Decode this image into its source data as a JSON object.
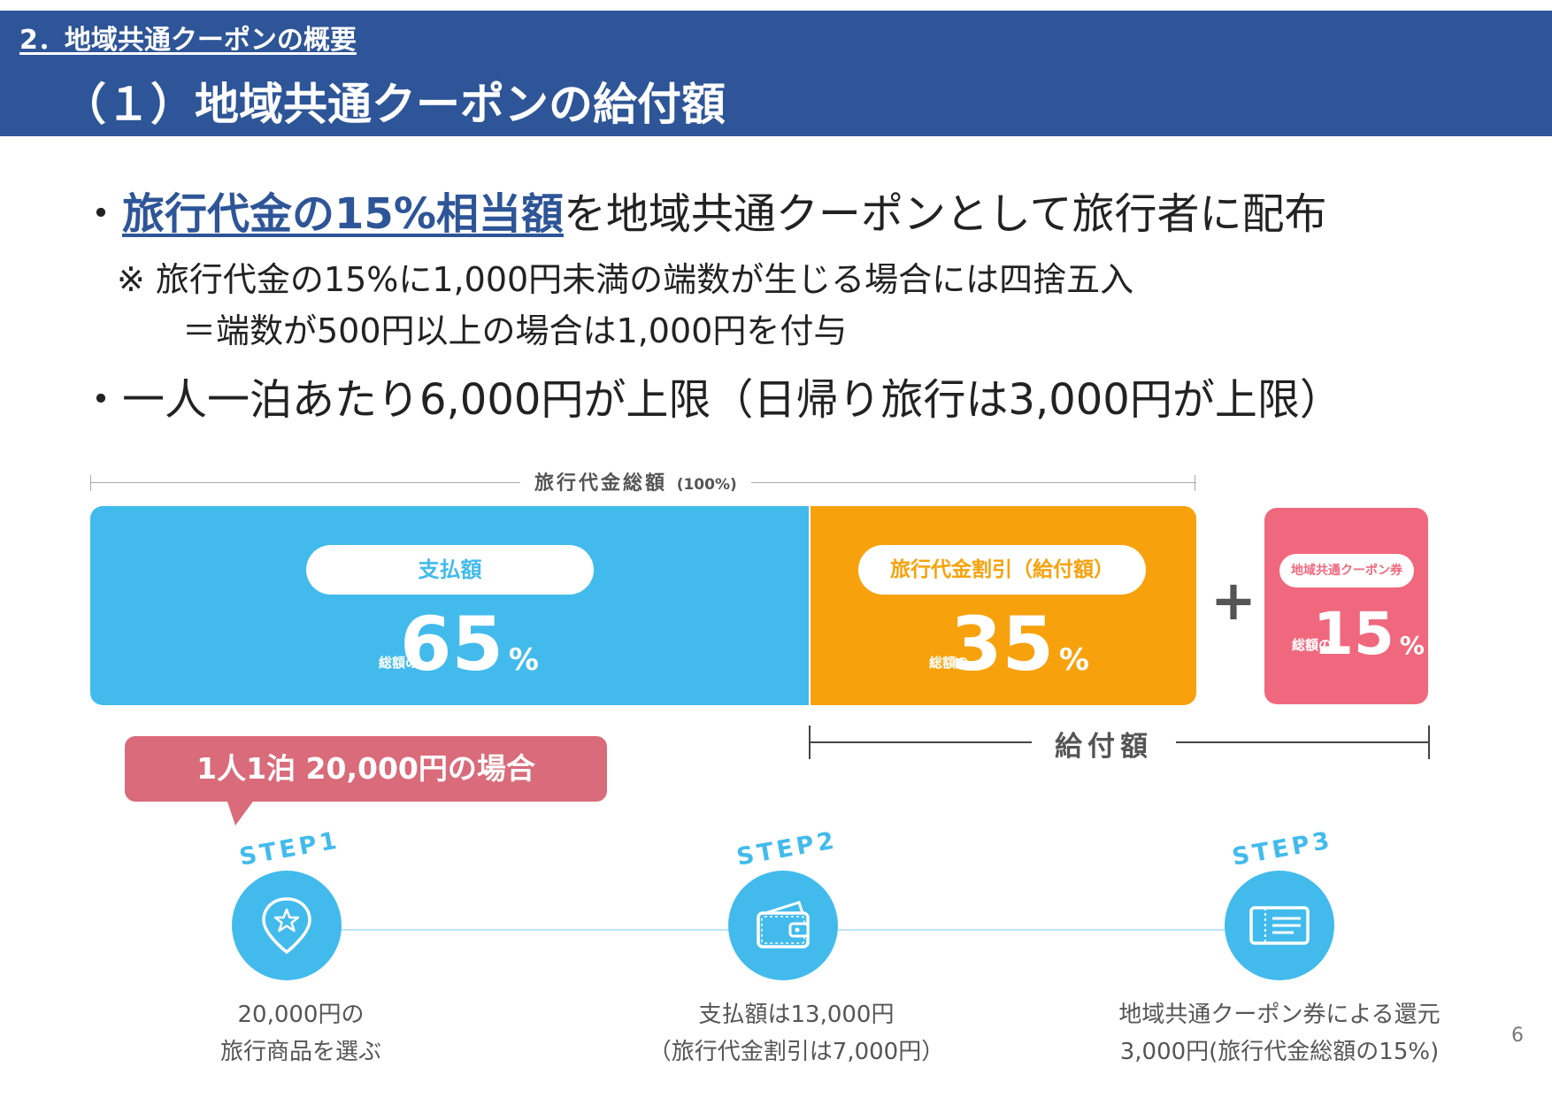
{
  "header": {
    "section": "2．地域共通クーポンの概要",
    "title": "（１）地域共通クーポンの給付額"
  },
  "bullets": {
    "b1_mark": "・",
    "b1_highlight": "旅行代金の15%相当額",
    "b1_rest": "を地域共通クーポンとして旅行者に配布",
    "note1": "※ 旅行代金の15%に1,000円未満の端数が生じる場合には四捨五入",
    "note2": "＝端数が500円以上の場合は1,000円を付与",
    "b2": "・一人一泊あたり6,000円が上限（日帰り旅行は3,000円が上限）"
  },
  "diagram": {
    "total_label": "旅行代金総額",
    "total_pct": "(100%)",
    "pay": {
      "label": "支払額",
      "prefix": "総額の",
      "value": "65",
      "unit": "%"
    },
    "discount": {
      "label": "旅行代金割引（給付額）",
      "prefix": "総額の",
      "value": "35",
      "unit": "%"
    },
    "plus": "+",
    "coupon": {
      "label": "地域共通クーポン券",
      "prefix": "総額の",
      "value": "15",
      "unit": "%"
    },
    "benefit_label": "給付額",
    "colors": {
      "pay": "#42bbec",
      "discount": "#f7a20d",
      "coupon": "#f0687d",
      "header": "#2e5597"
    }
  },
  "callout": "1人1泊 20,000円の場合",
  "steps": [
    {
      "label": "STEP1",
      "icon": "map-pin-star-icon",
      "line1": "20,000円の",
      "line2": "旅行商品を選ぶ"
    },
    {
      "label": "STEP2",
      "icon": "wallet-icon",
      "line1": "支払額は13,000円",
      "line2": "（旅行代金割引は7,000円）"
    },
    {
      "label": "STEP3",
      "icon": "coupon-ticket-icon",
      "line1": "地域共通クーポン券による還元",
      "line2": "3,000円(旅行代金総額の15%)"
    }
  ],
  "page_number": "6"
}
